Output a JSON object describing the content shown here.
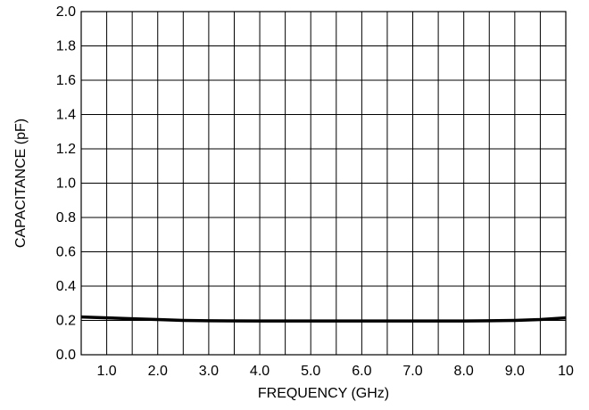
{
  "chart_data": {
    "type": "line",
    "title": "",
    "xlabel": "FREQUENCY (GHz)",
    "ylabel": "CAPACITANCE (pF)",
    "xlim": [
      0.5,
      10
    ],
    "ylim": [
      0,
      2.0
    ],
    "x_ticks": [
      1.0,
      2.0,
      3.0,
      4.0,
      5.0,
      6.0,
      7.0,
      8.0,
      9.0,
      10
    ],
    "x_tick_labels": [
      "1.0",
      "2.0",
      "3.0",
      "4.0",
      "5.0",
      "6.0",
      "7.0",
      "8.0",
      "9.0",
      "10"
    ],
    "y_ticks": [
      0,
      0.2,
      0.4,
      0.6,
      0.8,
      1.0,
      1.2,
      1.4,
      1.6,
      1.8,
      2.0
    ],
    "y_tick_labels": [
      "0.0",
      "0.2",
      "0.4",
      "0.6",
      "0.8",
      "1.0",
      "1.2",
      "1.4",
      "1.6",
      "1.8",
      "2.0"
    ],
    "x_grid_step": 0.5,
    "grid": true,
    "series": [
      {
        "x": [
          0.5,
          1.0,
          1.5,
          2.0,
          2.5,
          3.0,
          4.0,
          5.0,
          6.0,
          7.0,
          8.0,
          8.5,
          9.0,
          9.5,
          10.0
        ],
        "values": [
          0.22,
          0.215,
          0.21,
          0.205,
          0.2,
          0.198,
          0.197,
          0.197,
          0.197,
          0.197,
          0.197,
          0.198,
          0.2,
          0.205,
          0.215
        ],
        "color": "#000000"
      }
    ]
  }
}
